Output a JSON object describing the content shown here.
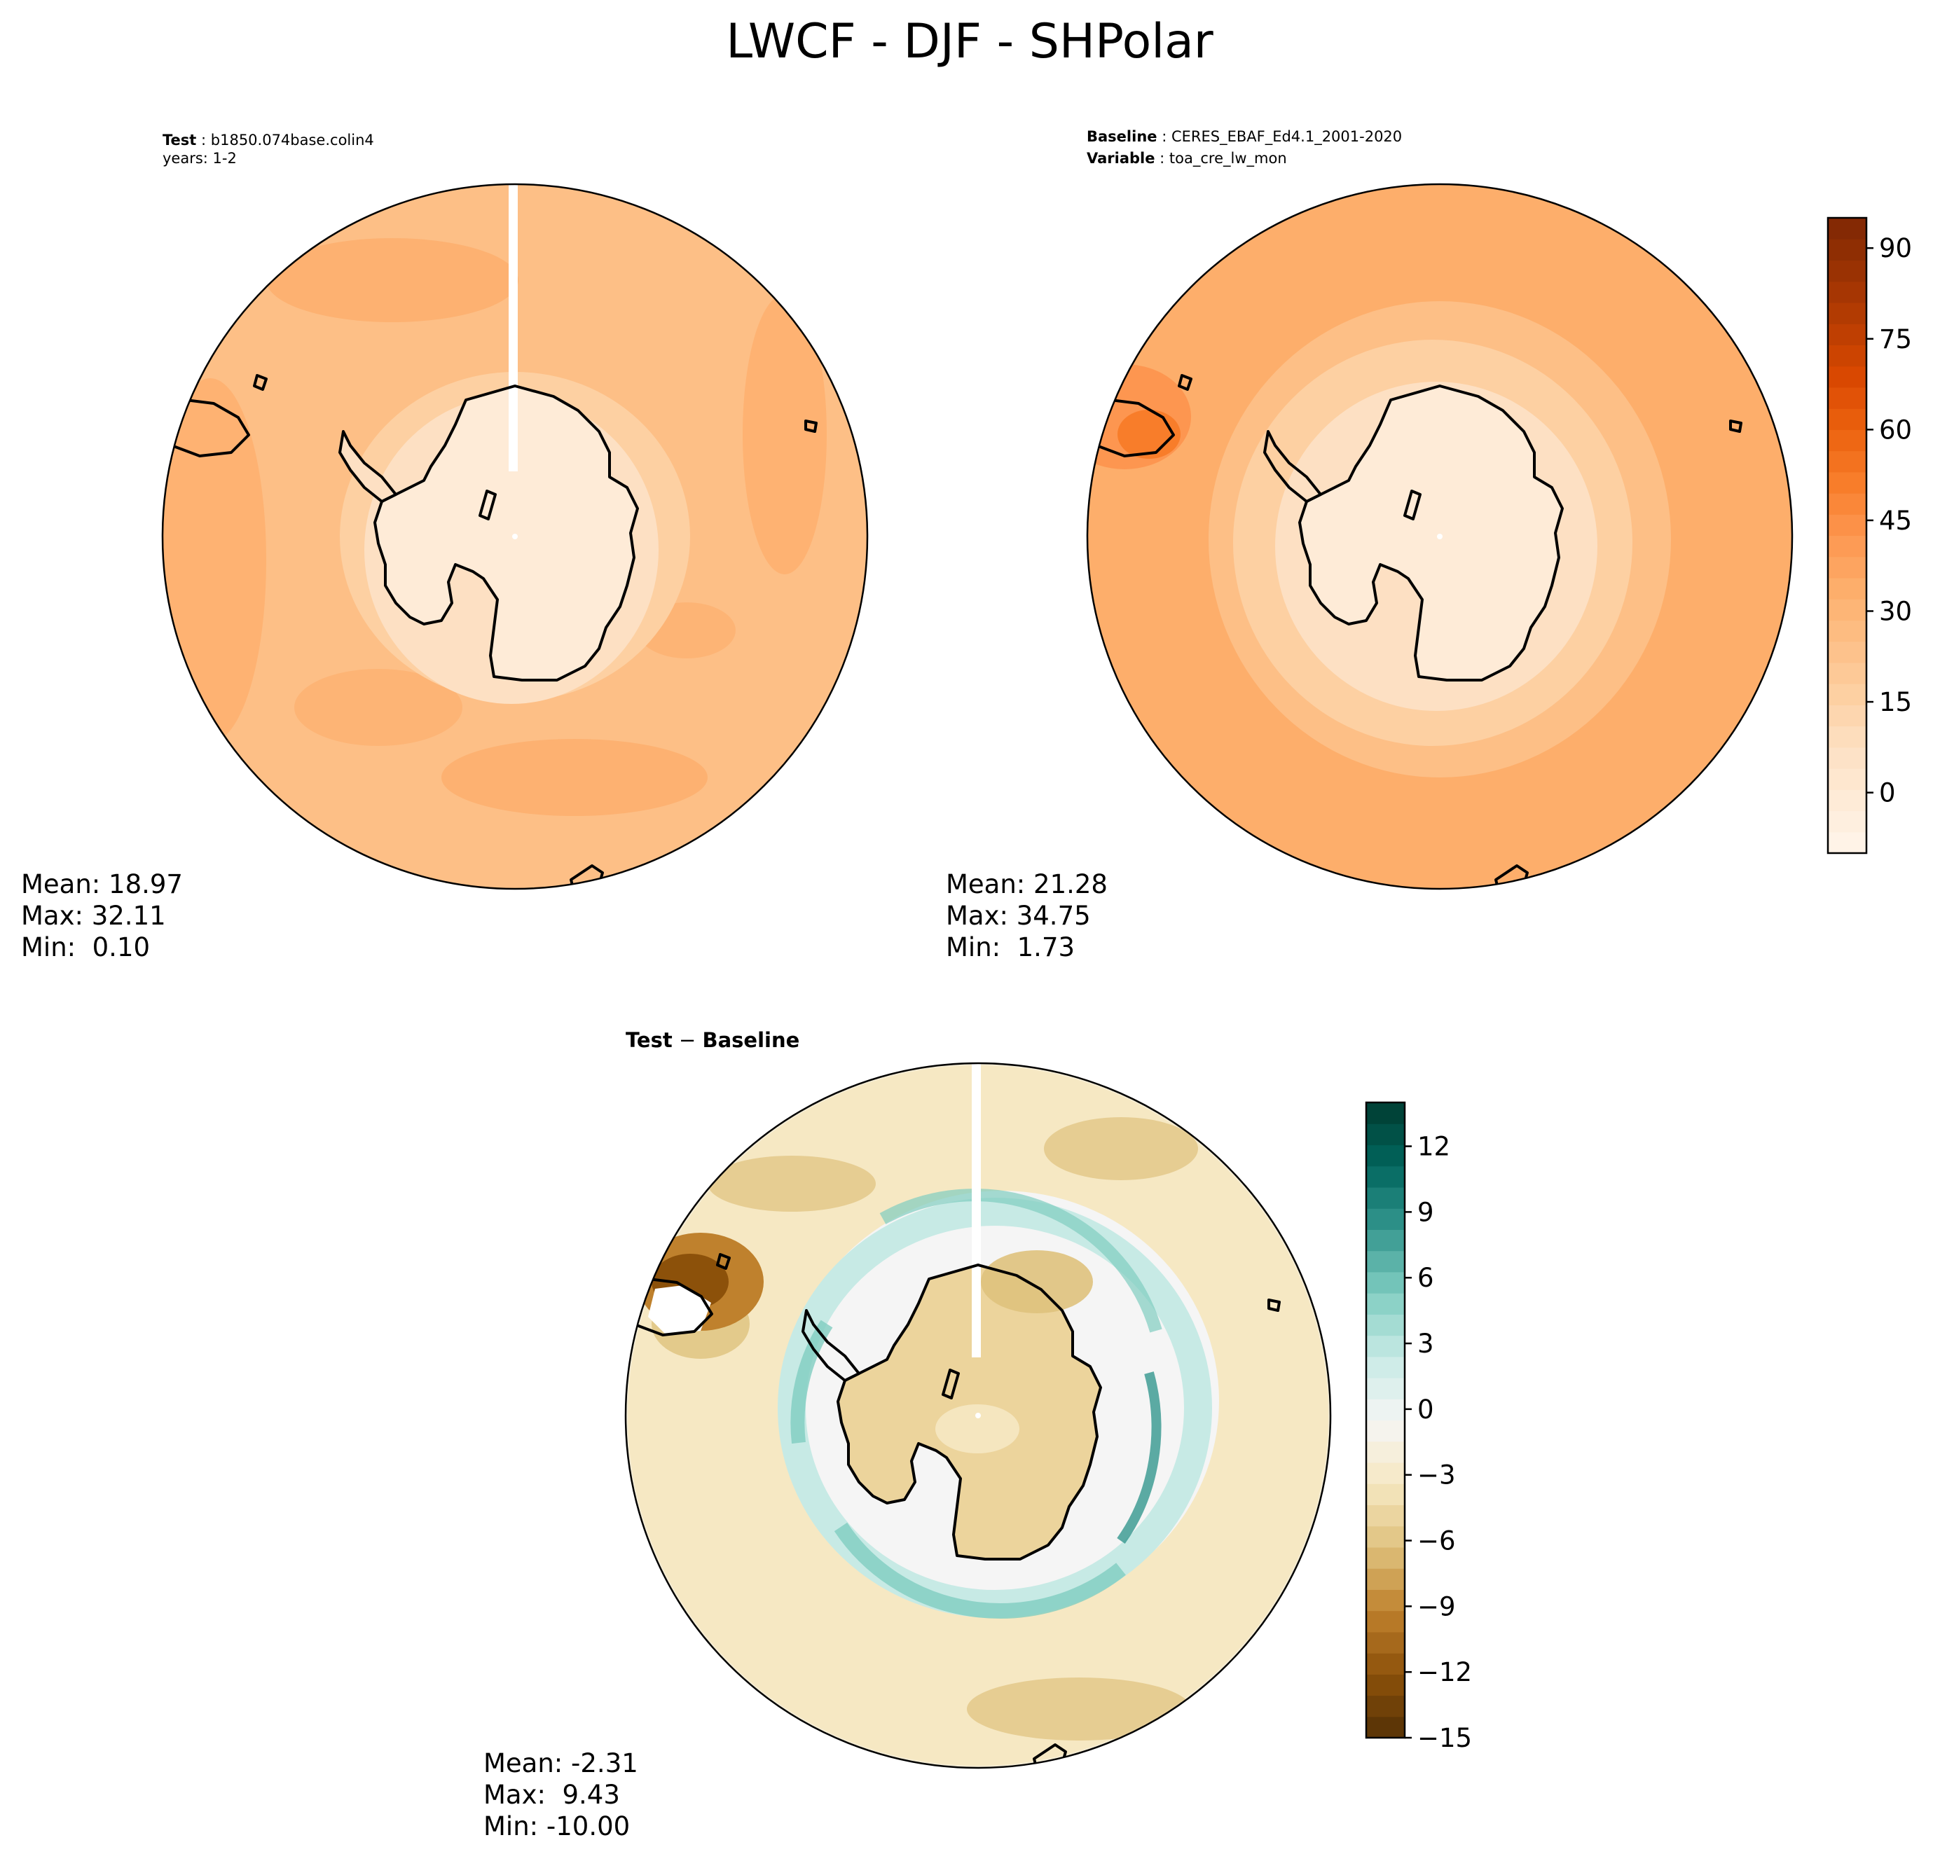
{
  "title": "LWCF - DJF - SHPolar",
  "panels": {
    "test": {
      "label": "Test",
      "case": "b1850.074base.colin4",
      "years": "years: 1-2",
      "stats": {
        "mean": "Mean: 18.97",
        "max": "Max: 32.11",
        "min": "Min:  0.10"
      }
    },
    "baseline": {
      "label": "Baseline",
      "case": "CERES_EBAF_Ed4.1_2001-2020",
      "variable_label": "Variable",
      "variable": "toa_cre_lw_mon",
      "stats": {
        "mean": "Mean: 21.28",
        "max": "Max: 34.75",
        "min": "Min:  1.73"
      }
    },
    "diff": {
      "title_test": "Test",
      "title_sep": " − ",
      "title_base": "Baseline",
      "stats": {
        "mean": "Mean: -2.31",
        "max": "Max:  9.43",
        "min": "Min: -10.00"
      }
    }
  },
  "chart_data": [
    {
      "type": "heatmap",
      "projection": "south-polar-stereographic",
      "panel": "test",
      "colormap": "Oranges",
      "levels_range": [
        -10,
        95
      ],
      "colorbar_ticks": [
        0,
        15,
        30,
        45,
        60,
        75,
        90
      ],
      "mean": 18.97,
      "max": 32.11,
      "min": 0.1
    },
    {
      "type": "heatmap",
      "projection": "south-polar-stereographic",
      "panel": "baseline",
      "colormap": "Oranges",
      "levels_range": [
        -10,
        95
      ],
      "colorbar_ticks": [
        0,
        15,
        30,
        45,
        60,
        75,
        90
      ],
      "mean": 21.28,
      "max": 34.75,
      "min": 1.73
    },
    {
      "type": "heatmap",
      "projection": "south-polar-stereographic",
      "panel": "diff",
      "colormap": "BrBG",
      "levels_range": [
        -15,
        14
      ],
      "colorbar_ticks": [
        "−15",
        "−12",
        "−9",
        "−6",
        "−3",
        "0",
        "3",
        "6",
        "9",
        "12"
      ],
      "mean": -2.31,
      "max": 9.43,
      "min": -10.0
    }
  ],
  "colors": {
    "oranges": [
      "#fff5eb",
      "#feebd7",
      "#fde0c3",
      "#fdd0a2",
      "#fdbf86",
      "#fdae6b",
      "#fd9650",
      "#f87d2a",
      "#ec620f",
      "#d94801",
      "#b83d02",
      "#9a3203",
      "#7f2704"
    ],
    "brbg": [
      "#543005",
      "#8c510a",
      "#bf812d",
      "#dfc27d",
      "#f6e8c3",
      "#f5f5f5",
      "#c7eae5",
      "#80cdc1",
      "#35978f",
      "#01665e",
      "#003c30"
    ]
  }
}
